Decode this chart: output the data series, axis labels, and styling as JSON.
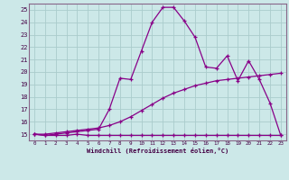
{
  "xlabel": "Windchill (Refroidissement éolien,°C)",
  "bg_color": "#cce8e8",
  "grid_color": "#aacccc",
  "line_color": "#880088",
  "xlim": [
    -0.5,
    23.5
  ],
  "ylim": [
    14.5,
    25.5
  ],
  "xticks": [
    0,
    1,
    2,
    3,
    4,
    5,
    6,
    7,
    8,
    9,
    10,
    11,
    12,
    13,
    14,
    15,
    16,
    17,
    18,
    19,
    20,
    21,
    22,
    23
  ],
  "yticks": [
    15,
    16,
    17,
    18,
    19,
    20,
    21,
    22,
    23,
    24,
    25
  ],
  "series1_y": [
    15.0,
    14.9,
    14.9,
    14.9,
    15.0,
    14.9,
    14.9,
    14.9,
    14.9,
    14.9,
    14.9,
    14.9,
    14.9,
    14.9,
    14.9,
    14.9,
    14.9,
    14.9,
    14.9,
    14.9,
    14.9,
    14.9,
    14.9,
    14.9
  ],
  "series2_y": [
    15.0,
    15.0,
    15.1,
    15.2,
    15.3,
    15.4,
    15.5,
    15.7,
    16.0,
    16.4,
    16.9,
    17.4,
    17.9,
    18.3,
    18.6,
    18.9,
    19.1,
    19.3,
    19.4,
    19.5,
    19.6,
    19.7,
    19.8,
    19.9
  ],
  "series3_y": [
    15.0,
    14.9,
    15.0,
    15.1,
    15.2,
    15.3,
    15.4,
    17.0,
    19.5,
    19.4,
    21.7,
    24.0,
    25.2,
    25.2,
    24.1,
    22.8,
    20.4,
    20.3,
    21.3,
    19.3,
    20.9,
    19.4,
    17.5,
    14.9
  ]
}
